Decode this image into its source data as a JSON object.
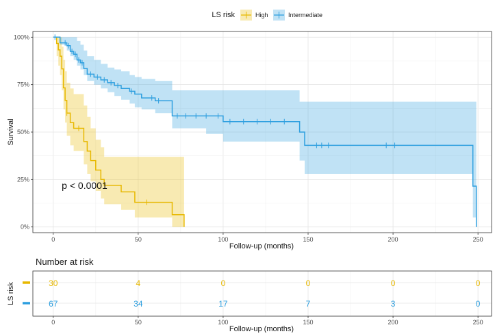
{
  "chart_data": [
    {
      "type": "line",
      "subtype": "kaplan-meier",
      "legend": {
        "title": "LS risk",
        "placement": "top",
        "entries": [
          "High",
          "Intermediate"
        ]
      },
      "xlabel": "Follow-up (months)",
      "ylabel": "Survival",
      "xlim": [
        -12,
        258
      ],
      "ylim": [
        -0.03,
        1.03
      ],
      "x_ticks": [
        0,
        50,
        100,
        150,
        200,
        250
      ],
      "x_tick_labels": [
        "0",
        "50",
        "100",
        "150",
        "200",
        "250"
      ],
      "y_ticks": [
        0,
        0.25,
        0.5,
        0.75,
        1.0
      ],
      "y_tick_labels": [
        "0%",
        "25%",
        "50%",
        "75%",
        "100%"
      ],
      "grid": true,
      "annotation": "p < 0.0001",
      "annotation_pos": {
        "x": 5,
        "y": 0.2
      },
      "series": [
        {
          "name": "High",
          "color": "#e7b800",
          "x": [
            0,
            2,
            3,
            4,
            5,
            6,
            7,
            8,
            10,
            12,
            15,
            18,
            20,
            22,
            25,
            28,
            30,
            35,
            40,
            48,
            55,
            70,
            77
          ],
          "y": [
            1.0,
            0.967,
            0.933,
            0.9,
            0.833,
            0.733,
            0.667,
            0.6,
            0.55,
            0.52,
            0.52,
            0.45,
            0.4,
            0.35,
            0.3,
            0.25,
            0.22,
            0.22,
            0.185,
            0.13,
            0.13,
            0.065,
            0.0
          ],
          "ci_lower": [
            1.0,
            0.9,
            0.85,
            0.8,
            0.72,
            0.62,
            0.55,
            0.48,
            0.43,
            0.4,
            0.4,
            0.33,
            0.28,
            0.24,
            0.19,
            0.15,
            0.12,
            0.12,
            0.09,
            0.05,
            0.05,
            0.0,
            0.0
          ],
          "ci_upper": [
            1.0,
            1.0,
            1.0,
            1.0,
            0.95,
            0.88,
            0.82,
            0.76,
            0.73,
            0.7,
            0.7,
            0.64,
            0.58,
            0.52,
            0.46,
            0.42,
            0.37,
            0.37,
            0.37,
            0.37,
            0.37,
            0.37,
            0.37
          ],
          "censor_x": [
            8,
            15,
            55
          ]
        },
        {
          "name": "Intermediate",
          "color": "#2e9fdf",
          "x": [
            0,
            4,
            8,
            10,
            12,
            14,
            16,
            18,
            20,
            24,
            28,
            32,
            36,
            40,
            45,
            48,
            52,
            60,
            70,
            80,
            90,
            100,
            110,
            120,
            130,
            140,
            145,
            148,
            200,
            247,
            249
          ],
          "y": [
            1.0,
            0.97,
            0.955,
            0.925,
            0.91,
            0.88,
            0.865,
            0.835,
            0.805,
            0.79,
            0.775,
            0.76,
            0.745,
            0.73,
            0.715,
            0.7,
            0.68,
            0.665,
            0.585,
            0.585,
            0.585,
            0.555,
            0.555,
            0.555,
            0.555,
            0.555,
            0.5,
            0.43,
            0.43,
            0.215,
            0.0
          ],
          "ci_lower": [
            1.0,
            0.96,
            0.93,
            0.9,
            0.88,
            0.85,
            0.83,
            0.8,
            0.77,
            0.75,
            0.73,
            0.71,
            0.69,
            0.67,
            0.65,
            0.63,
            0.62,
            0.6,
            0.52,
            0.52,
            0.49,
            0.45,
            0.45,
            0.45,
            0.45,
            0.45,
            0.35,
            0.28,
            0.28,
            0.05,
            0.0
          ],
          "ci_upper": [
            1.0,
            1.0,
            1.0,
            1.0,
            1.0,
            0.98,
            0.96,
            0.93,
            0.9,
            0.88,
            0.86,
            0.84,
            0.83,
            0.82,
            0.8,
            0.79,
            0.78,
            0.77,
            0.72,
            0.72,
            0.72,
            0.72,
            0.72,
            0.72,
            0.72,
            0.72,
            0.66,
            0.66,
            0.66,
            0.66,
            0.92
          ],
          "censor_x": [
            1,
            7,
            9,
            11,
            13,
            15,
            17,
            22,
            26,
            30,
            34,
            38,
            46,
            58,
            62,
            73,
            78,
            84,
            90,
            97,
            104,
            112,
            120,
            128,
            136,
            155,
            158,
            162,
            196,
            201
          ]
        }
      ]
    },
    {
      "type": "table",
      "title": "Number at risk",
      "ylabel": "LS risk",
      "xlabel": "Follow-up (months)",
      "x_ticks": [
        0,
        50,
        100,
        150,
        200,
        250
      ],
      "x_tick_labels": [
        "0",
        "50",
        "100",
        "150",
        "200",
        "250"
      ],
      "rows": [
        {
          "name": "High",
          "color": "#e7b800",
          "values": [
            "30",
            "4",
            "0",
            "0",
            "0",
            "0"
          ]
        },
        {
          "name": "Intermediate",
          "color": "#2e9fdf",
          "values": [
            "67",
            "34",
            "17",
            "7",
            "3",
            "0"
          ]
        }
      ]
    }
  ]
}
